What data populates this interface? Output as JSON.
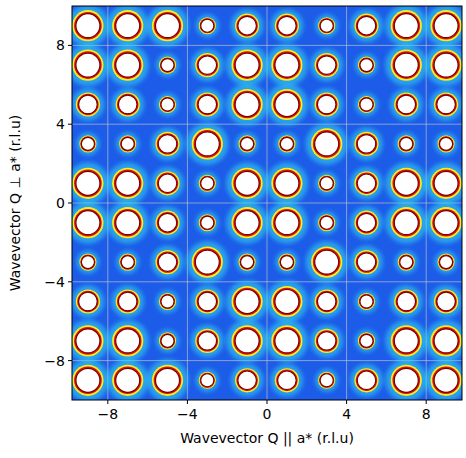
{
  "chart_data": {
    "type": "heatmap",
    "xlabel": "Wavevector Q || a* (r.l.u)",
    "ylabel": "Wavevector Q ⊥ a* (r.l.u)",
    "x": [
      -9,
      -7,
      -5,
      -3,
      -1,
      1,
      3,
      5,
      7,
      9
    ],
    "y": [
      9,
      7,
      5,
      3,
      1,
      -1,
      -3,
      -5,
      -7,
      -9
    ],
    "values": [
      [
        100,
        100,
        100,
        30,
        60,
        60,
        30,
        60,
        100,
        100
      ],
      [
        100,
        100,
        30,
        60,
        100,
        100,
        60,
        30,
        100,
        100
      ],
      [
        60,
        60,
        30,
        60,
        100,
        100,
        60,
        30,
        60,
        60
      ],
      [
        30,
        30,
        60,
        100,
        30,
        30,
        100,
        60,
        30,
        30
      ],
      [
        100,
        100,
        60,
        30,
        100,
        100,
        30,
        60,
        100,
        100
      ],
      [
        100,
        100,
        60,
        30,
        100,
        100,
        30,
        60,
        100,
        100
      ],
      [
        30,
        30,
        60,
        100,
        30,
        30,
        100,
        60,
        30,
        30
      ],
      [
        60,
        60,
        30,
        60,
        100,
        100,
        60,
        30,
        60,
        60
      ],
      [
        100,
        100,
        30,
        60,
        100,
        100,
        60,
        30,
        100,
        100
      ],
      [
        100,
        100,
        100,
        30,
        60,
        60,
        30,
        60,
        100,
        100
      ]
    ],
    "xlim": [
      -9.8,
      9.8
    ],
    "ylim": [
      -10,
      10
    ],
    "xticks": [
      -8,
      -4,
      0,
      4,
      8
    ],
    "yticks": [
      -8,
      -4,
      0,
      4,
      8
    ],
    "grid": true
  }
}
